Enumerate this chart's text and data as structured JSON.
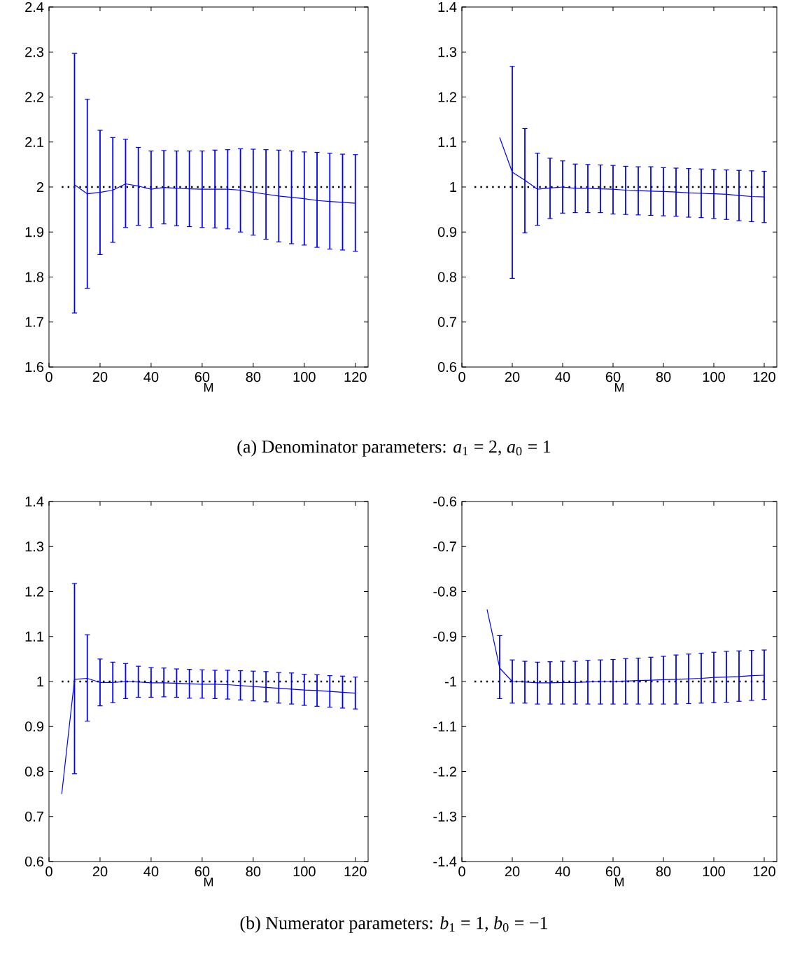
{
  "chart_data": [
    {
      "type": "line",
      "xlabel": "M",
      "x": [
        10,
        15,
        20,
        25,
        30,
        35,
        40,
        45,
        50,
        55,
        60,
        65,
        70,
        75,
        80,
        85,
        90,
        95,
        100,
        105,
        110,
        115,
        120
      ],
      "series": [
        {
          "color": "#0000ff",
          "values": [
            2.005,
            1.985,
            1.988,
            1.993,
            2.007,
            2.002,
            1.995,
            1.999,
            1.997,
            1.996,
            1.995,
            1.995,
            1.995,
            1.993,
            1.988,
            1.984,
            1.98,
            1.977,
            1.974,
            1.97,
            1.968,
            1.966,
            1.964
          ],
          "errors": [
            [
              1.72,
              2.297
            ],
            [
              1.775,
              2.195
            ],
            [
              1.85,
              2.126
            ],
            [
              1.877,
              2.11
            ],
            [
              1.91,
              2.106
            ],
            [
              1.915,
              2.088
            ],
            [
              1.91,
              2.08
            ],
            [
              1.918,
              2.081
            ],
            [
              1.914,
              2.08
            ],
            [
              1.912,
              2.08
            ],
            [
              1.91,
              2.08
            ],
            [
              1.909,
              2.082
            ],
            [
              1.907,
              2.083
            ],
            [
              1.9,
              2.085
            ],
            [
              1.893,
              2.084
            ],
            [
              1.884,
              2.083
            ],
            [
              1.878,
              2.082
            ],
            [
              1.874,
              2.08
            ],
            [
              1.871,
              2.078
            ],
            [
              1.866,
              2.077
            ],
            [
              1.862,
              2.075
            ],
            [
              1.86,
              2.073
            ],
            [
              1.857,
              2.072
            ]
          ]
        }
      ],
      "xlim": [
        0,
        125
      ],
      "xticks": [
        0,
        20,
        40,
        60,
        80,
        100,
        120
      ],
      "ylim": [
        1.6,
        2.4
      ],
      "yticks": [
        1.6,
        1.7,
        1.8,
        1.9,
        2,
        2.1,
        2.2,
        2.3,
        2.4
      ],
      "ref_lines": [
        {
          "axis": "y",
          "value": 2,
          "color": "#000000",
          "line_style": "dotted"
        }
      ],
      "annotations": [
        "(a) Denominator parameters: *a*$_{1}$ = 2, *a*$_{0}$ = 1"
      ]
    },
    {
      "type": "line",
      "xlabel": "M",
      "x": [
        15,
        20,
        25,
        30,
        35,
        40,
        45,
        50,
        55,
        60,
        65,
        70,
        75,
        80,
        85,
        90,
        95,
        100,
        105,
        110,
        115,
        120
      ],
      "series": [
        {
          "color": "#0000ff",
          "values": [
            1.11,
            1.033,
            1.015,
            0.995,
            0.998,
            1.0,
            0.997,
            0.997,
            0.996,
            0.995,
            0.993,
            0.992,
            0.991,
            0.99,
            0.989,
            0.987,
            0.986,
            0.985,
            0.984,
            0.981,
            0.979,
            0.978
          ],
          "errors": [
            null,
            [
              0.797,
              1.268
            ],
            [
              0.898,
              1.13
            ],
            [
              0.915,
              1.075
            ],
            [
              0.93,
              1.064
            ],
            [
              0.942,
              1.058
            ],
            [
              0.943,
              1.051
            ],
            [
              0.943,
              1.05
            ],
            [
              0.943,
              1.049
            ],
            [
              0.94,
              1.048
            ],
            [
              0.939,
              1.046
            ],
            [
              0.938,
              1.045
            ],
            [
              0.937,
              1.045
            ],
            [
              0.936,
              1.043
            ],
            [
              0.935,
              1.042
            ],
            [
              0.933,
              1.041
            ],
            [
              0.932,
              1.04
            ],
            [
              0.93,
              1.039
            ],
            [
              0.928,
              1.038
            ],
            [
              0.925,
              1.037
            ],
            [
              0.923,
              1.036
            ],
            [
              0.921,
              1.035
            ]
          ]
        }
      ],
      "xlim": [
        0,
        125
      ],
      "xticks": [
        0,
        20,
        40,
        60,
        80,
        100,
        120
      ],
      "ylim": [
        0.6,
        1.4
      ],
      "yticks": [
        0.6,
        0.7,
        0.8,
        0.9,
        1,
        1.1,
        1.2,
        1.3,
        1.4
      ],
      "ref_lines": [
        {
          "axis": "y",
          "value": 1,
          "color": "#000000",
          "line_style": "dotted"
        }
      ]
    },
    {
      "type": "line",
      "xlabel": "M",
      "x": [
        5,
        10,
        15,
        20,
        25,
        30,
        35,
        40,
        45,
        50,
        55,
        60,
        65,
        70,
        75,
        80,
        85,
        90,
        95,
        100,
        105,
        110,
        115,
        120
      ],
      "series": [
        {
          "color": "#0000ff",
          "values": [
            0.75,
            1.005,
            1.007,
            0.998,
            0.998,
            1.0,
            0.999,
            0.997,
            0.997,
            0.996,
            0.995,
            0.994,
            0.994,
            0.993,
            0.991,
            0.989,
            0.987,
            0.985,
            0.983,
            0.981,
            0.98,
            0.978,
            0.976,
            0.974
          ],
          "errors": [
            null,
            [
              0.795,
              1.218
            ],
            [
              0.912,
              1.104
            ],
            [
              0.946,
              1.05
            ],
            [
              0.953,
              1.043
            ],
            [
              0.962,
              1.04
            ],
            [
              0.965,
              1.034
            ],
            [
              0.965,
              1.031
            ],
            [
              0.966,
              1.03
            ],
            [
              0.965,
              1.028
            ],
            [
              0.963,
              1.027
            ],
            [
              0.963,
              1.026
            ],
            [
              0.962,
              1.025
            ],
            [
              0.961,
              1.025
            ],
            [
              0.959,
              1.024
            ],
            [
              0.957,
              1.023
            ],
            [
              0.955,
              1.022
            ],
            [
              0.952,
              1.02
            ],
            [
              0.95,
              1.019
            ],
            [
              0.947,
              1.016
            ],
            [
              0.945,
              1.015
            ],
            [
              0.943,
              1.013
            ],
            [
              0.941,
              1.012
            ],
            [
              0.939,
              1.01
            ]
          ]
        }
      ],
      "xlim": [
        0,
        125
      ],
      "xticks": [
        0,
        20,
        40,
        60,
        80,
        100,
        120
      ],
      "ylim": [
        0.6,
        1.4
      ],
      "yticks": [
        0.6,
        0.7,
        0.8,
        0.9,
        1,
        1.1,
        1.2,
        1.3,
        1.4
      ],
      "ref_lines": [
        {
          "axis": "y",
          "value": 1,
          "color": "#000000",
          "line_style": "dotted"
        }
      ],
      "annotations": [
        "(b) Numerator parameters: *b*$_{1}$ = 1, *b*$_{0}$ = −1"
      ]
    },
    {
      "type": "line",
      "xlabel": "M",
      "x": [
        10,
        15,
        20,
        25,
        30,
        35,
        40,
        45,
        50,
        55,
        60,
        65,
        70,
        75,
        80,
        85,
        90,
        95,
        100,
        105,
        110,
        115,
        120
      ],
      "series": [
        {
          "color": "#0000ff",
          "values": [
            -0.84,
            -0.97,
            -1.0,
            -1.001,
            -1.003,
            -1.003,
            -1.002,
            -1.002,
            -1.001,
            -1.0,
            -1.0,
            -0.999,
            -0.998,
            -0.997,
            -0.996,
            -0.995,
            -0.994,
            -0.993,
            -0.991,
            -0.99,
            -0.989,
            -0.987,
            -0.986
          ],
          "errors": [
            null,
            [
              -1.038,
              -0.898
            ],
            [
              -1.048,
              -0.952
            ],
            [
              -1.048,
              -0.955
            ],
            [
              -1.05,
              -0.957
            ],
            [
              -1.05,
              -0.956
            ],
            [
              -1.05,
              -0.955
            ],
            [
              -1.05,
              -0.955
            ],
            [
              -1.05,
              -0.953
            ],
            [
              -1.05,
              -0.952
            ],
            [
              -1.05,
              -0.951
            ],
            [
              -1.05,
              -0.949
            ],
            [
              -1.05,
              -0.948
            ],
            [
              -1.05,
              -0.946
            ],
            [
              -1.05,
              -0.944
            ],
            [
              -1.05,
              -0.941
            ],
            [
              -1.049,
              -0.939
            ],
            [
              -1.048,
              -0.937
            ],
            [
              -1.047,
              -0.935
            ],
            [
              -1.046,
              -0.933
            ],
            [
              -1.044,
              -0.932
            ],
            [
              -1.042,
              -0.931
            ],
            [
              -1.04,
              -0.93
            ]
          ]
        }
      ],
      "xlim": [
        0,
        125
      ],
      "xticks": [
        0,
        20,
        40,
        60,
        80,
        100,
        120
      ],
      "ylim": [
        -1.4,
        -0.6
      ],
      "yticks": [
        -1.4,
        -1.3,
        -1.2,
        -1.1,
        -1,
        -0.9,
        -0.8,
        -0.7,
        -0.6
      ],
      "ref_lines": [
        {
          "axis": "y",
          "value": -1,
          "color": "#000000",
          "line_style": "dotted"
        }
      ]
    }
  ]
}
